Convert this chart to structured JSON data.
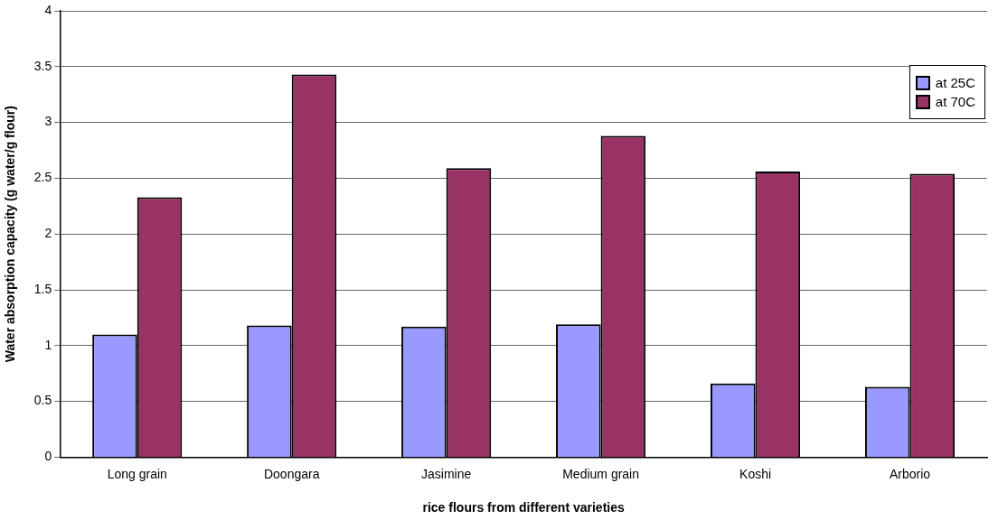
{
  "chart_data": {
    "type": "bar",
    "xlabel": "rice flours from different varieties",
    "ylabel": "Water absorption capacity (g water/g flour)",
    "categories": [
      "Long grain",
      "Doongara",
      "Jasimine",
      "Medium grain",
      "Koshi",
      "Arborio"
    ],
    "series": [
      {
        "name": "at 25C",
        "color": "#9999ff",
        "values": [
          1.1,
          1.18,
          1.17,
          1.19,
          0.66,
          0.63
        ]
      },
      {
        "name": "at 70C",
        "color": "#993366",
        "values": [
          2.33,
          3.43,
          2.59,
          2.88,
          2.56,
          2.54
        ]
      }
    ],
    "ylim": [
      0,
      4
    ],
    "yticks": [
      0,
      0.5,
      1,
      1.5,
      2,
      2.5,
      3,
      3.5,
      4
    ],
    "grid": "y",
    "legend": "top right"
  }
}
